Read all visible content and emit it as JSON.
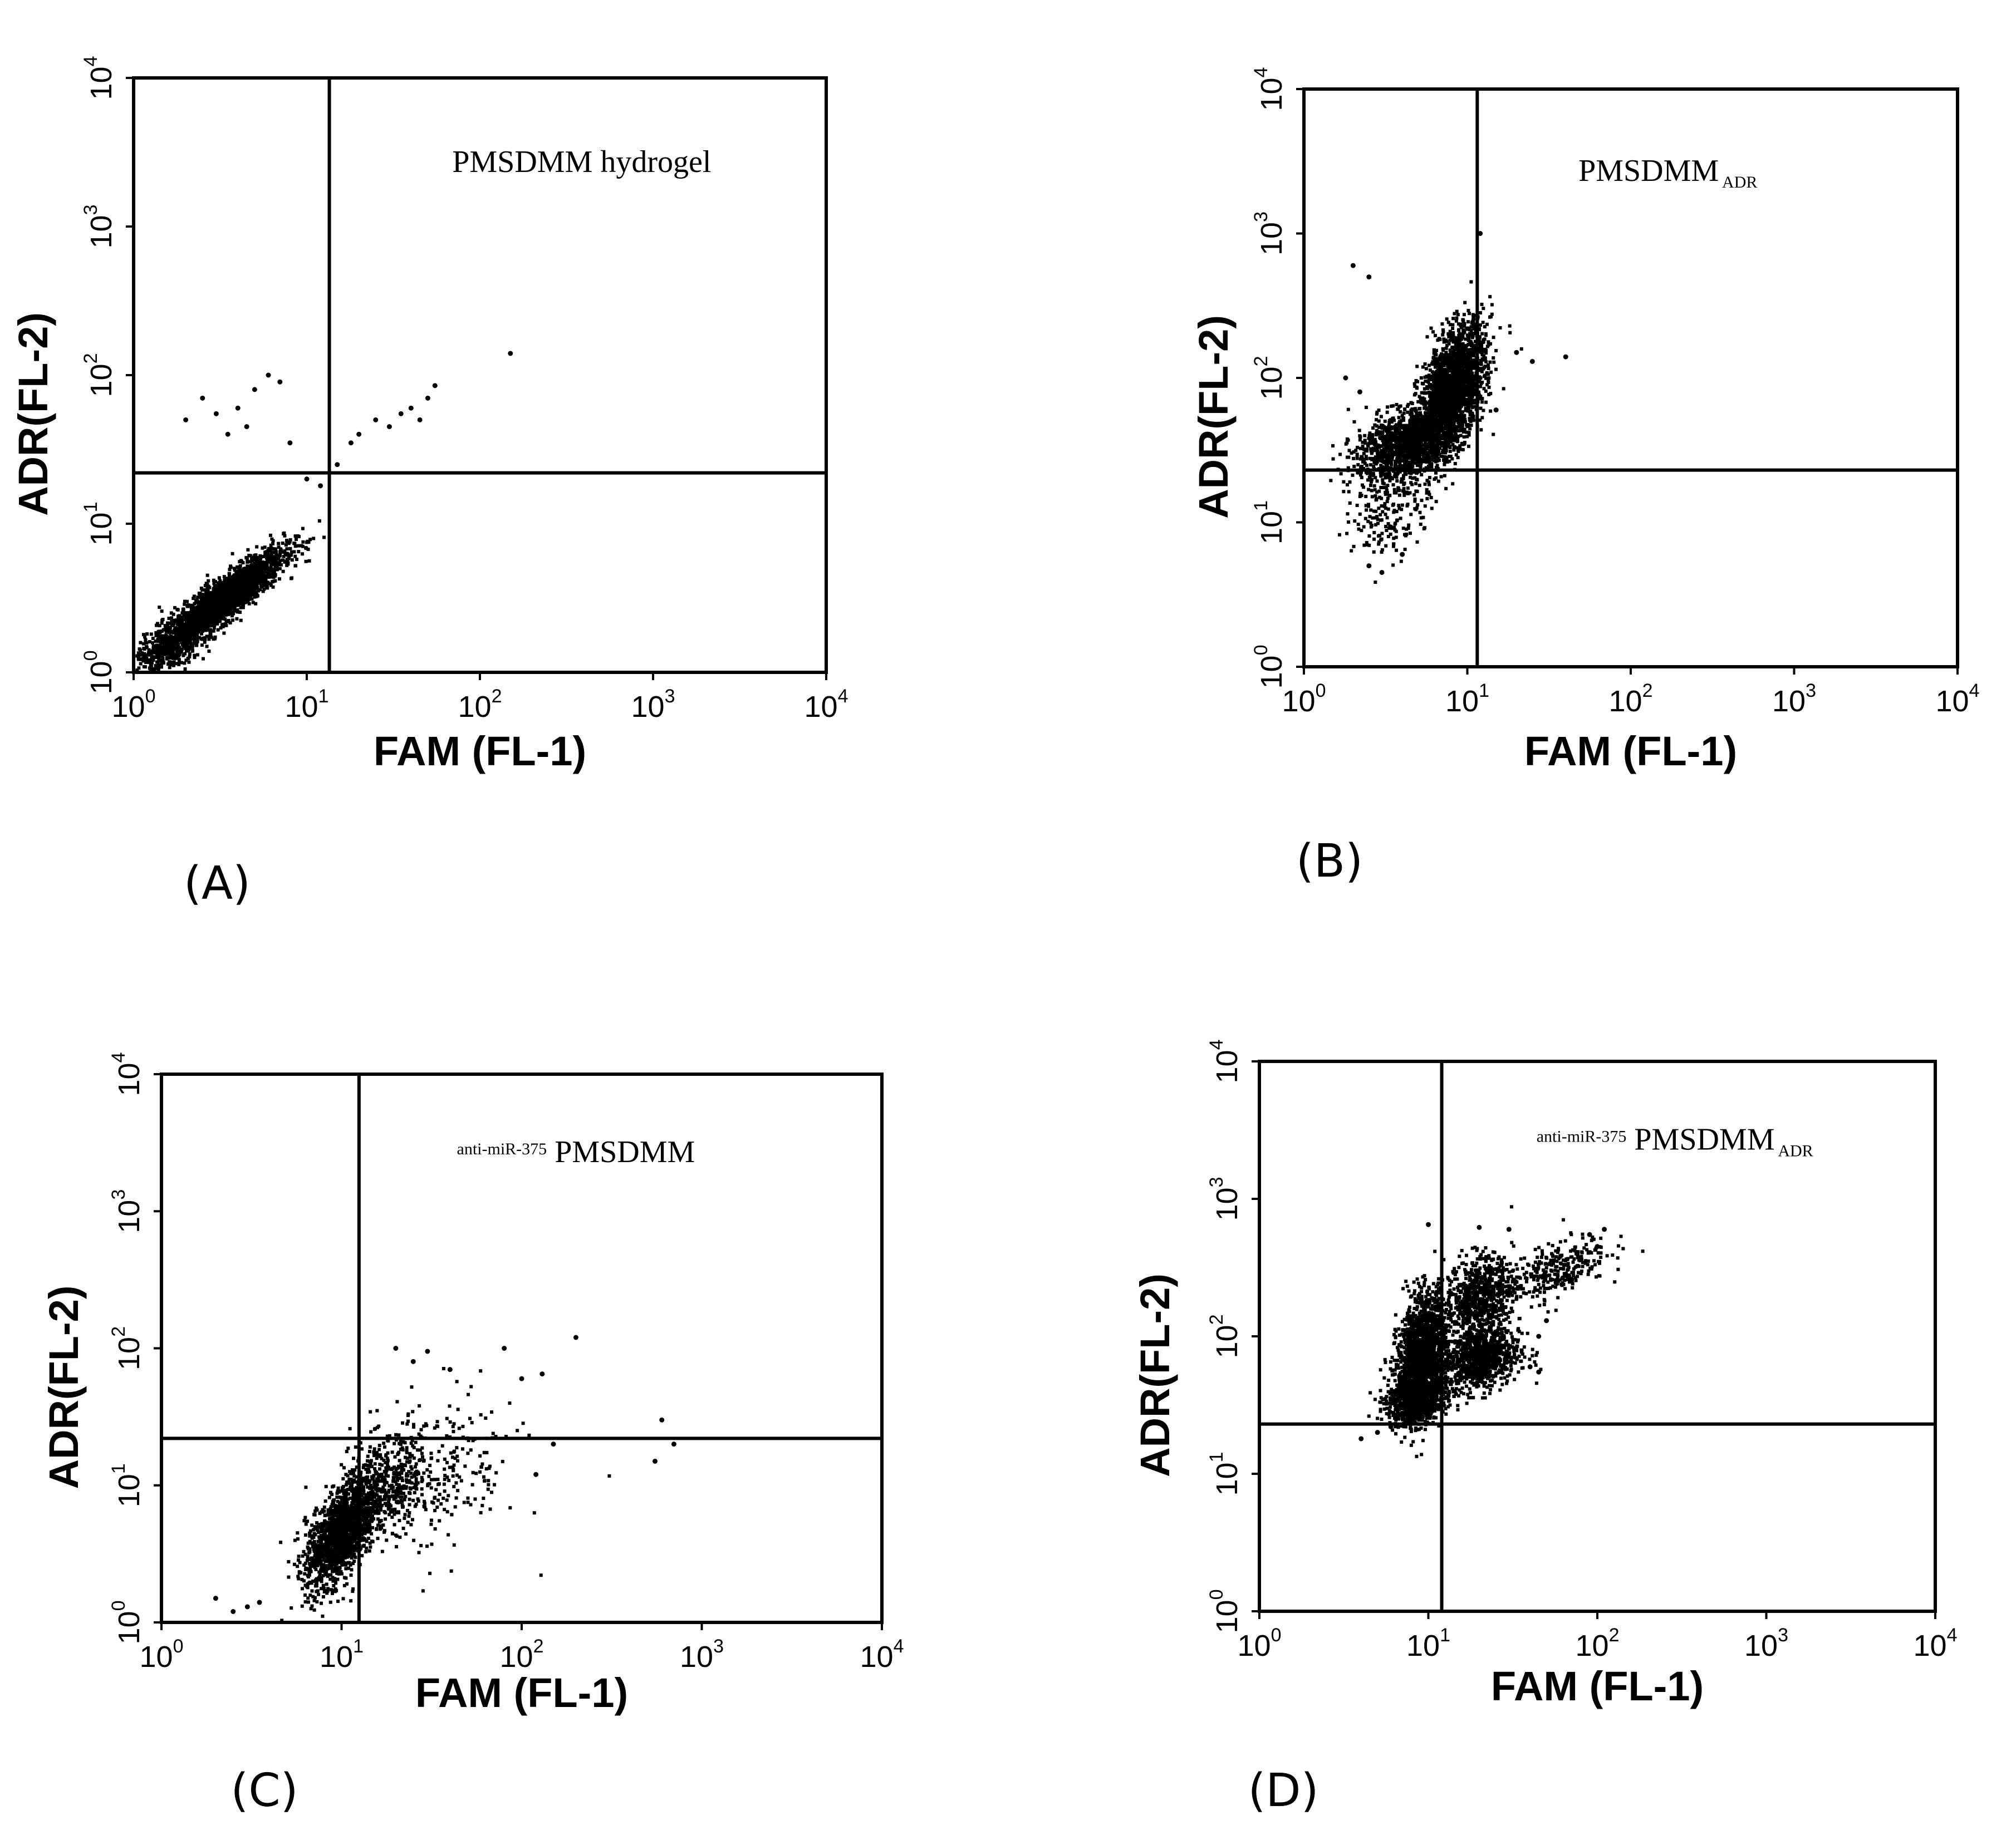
{
  "chart_data": [
    {
      "type": "scatter",
      "panel_label": "(A)",
      "annotation_prefix": "",
      "annotation_main": "PMSDMM  hydrogel",
      "annotation_sub": "",
      "xlabel": "FAM (FL-1)",
      "ylabel": "ADR(FL-2)",
      "x_scale": "log",
      "y_scale": "log",
      "xlim": [
        1,
        10000
      ],
      "ylim": [
        1,
        10000
      ],
      "tick_base": "10",
      "tick_exponents": [
        "0",
        "1",
        "2",
        "3",
        "4"
      ],
      "quadrant_gate": {
        "x": 13.5,
        "y": 22
      },
      "clusters": [
        {
          "center": [
            3.2,
            3.0
          ],
          "sigma_log10": [
            0.18,
            0.17
          ],
          "correlation": 0.9,
          "n": 2600
        },
        {
          "center": [
            1.6,
            1.4
          ],
          "sigma_log10": [
            0.1,
            0.1
          ],
          "correlation": 0.5,
          "n": 300
        }
      ],
      "sparse_points": [
        [
          2,
          50
        ],
        [
          2.5,
          70
        ],
        [
          3,
          55
        ],
        [
          4,
          60
        ],
        [
          5,
          80
        ],
        [
          6,
          100
        ],
        [
          7,
          90
        ],
        [
          3.5,
          40
        ],
        [
          4.5,
          45
        ],
        [
          8,
          35
        ],
        [
          10,
          20
        ],
        [
          12,
          18
        ],
        [
          15,
          25
        ],
        [
          18,
          35
        ],
        [
          20,
          40
        ],
        [
          25,
          50
        ],
        [
          30,
          45
        ],
        [
          35,
          55
        ],
        [
          40,
          60
        ],
        [
          45,
          50
        ],
        [
          50,
          70
        ],
        [
          55,
          85
        ],
        [
          150,
          140
        ]
      ]
    },
    {
      "type": "scatter",
      "panel_label": "(B)",
      "annotation_prefix": "",
      "annotation_main": "PMSDMM",
      "annotation_sub": "ADR",
      "xlabel": "FAM (FL-1)",
      "ylabel": "ADR(FL-2)",
      "x_scale": "log",
      "y_scale": "log",
      "xlim": [
        1,
        10000
      ],
      "ylim": [
        1,
        10000
      ],
      "tick_base": "10",
      "tick_exponents": [
        "0",
        "1",
        "2",
        "3",
        "4"
      ],
      "quadrant_gate": {
        "x": 11.5,
        "y": 23
      },
      "clusters": [
        {
          "center": [
            8.0,
            80
          ],
          "sigma_log10": [
            0.1,
            0.22
          ],
          "correlation": 0.5,
          "n": 2200
        },
        {
          "center": [
            4.0,
            35
          ],
          "sigma_log10": [
            0.14,
            0.12
          ],
          "correlation": 0.4,
          "n": 1100
        },
        {
          "center": [
            3.5,
            15
          ],
          "sigma_log10": [
            0.12,
            0.22
          ],
          "correlation": 0.2,
          "n": 260
        }
      ],
      "sparse_points": [
        [
          2,
          600
        ],
        [
          2.5,
          500
        ],
        [
          1.8,
          100
        ],
        [
          2.2,
          80
        ],
        [
          20,
          150
        ],
        [
          25,
          130
        ],
        [
          40,
          140
        ],
        [
          15,
          60
        ],
        [
          12,
          1000
        ],
        [
          2.5,
          5
        ],
        [
          3,
          4.5
        ],
        [
          4,
          6
        ]
      ]
    },
    {
      "type": "scatter",
      "panel_label": "(C)",
      "annotation_prefix": "anti-miR-375",
      "annotation_main": "PMSDMM",
      "annotation_sub": "",
      "xlabel": "FAM (FL-1)",
      "ylabel": "ADR(FL-2)",
      "x_scale": "log",
      "y_scale": "log",
      "xlim": [
        1,
        10000
      ],
      "ylim": [
        1,
        10000
      ],
      "tick_base": "10",
      "tick_exponents": [
        "0",
        "1",
        "2",
        "3",
        "4"
      ],
      "quadrant_gate": {
        "x": 12.5,
        "y": 22
      },
      "clusters": [
        {
          "center": [
            10.0,
            4.5
          ],
          "sigma_log10": [
            0.1,
            0.2
          ],
          "correlation": 0.6,
          "n": 1500
        },
        {
          "center": [
            18,
            10
          ],
          "sigma_log10": [
            0.14,
            0.18
          ],
          "correlation": 0.3,
          "n": 450
        },
        {
          "center": [
            35,
            12
          ],
          "sigma_log10": [
            0.22,
            0.3
          ],
          "correlation": 0.2,
          "n": 220
        }
      ],
      "sparse_points": [
        [
          2,
          1.5
        ],
        [
          2.5,
          1.2
        ],
        [
          3,
          1.3
        ],
        [
          3.5,
          1.4
        ],
        [
          20,
          100
        ],
        [
          25,
          80
        ],
        [
          30,
          95
        ],
        [
          40,
          70
        ],
        [
          80,
          100
        ],
        [
          100,
          60
        ],
        [
          130,
          65
        ],
        [
          200,
          120
        ],
        [
          550,
          15
        ],
        [
          600,
          30
        ],
        [
          700,
          20
        ],
        [
          120,
          12
        ],
        [
          150,
          20
        ]
      ]
    },
    {
      "type": "scatter",
      "panel_label": "(D)",
      "annotation_prefix": "anti-miR-375",
      "annotation_main": "PMSDMM",
      "annotation_sub": "ADR",
      "xlabel": "FAM (FL-1)",
      "ylabel": "ADR(FL-2)",
      "x_scale": "log",
      "y_scale": "log",
      "xlim": [
        1,
        10000
      ],
      "ylim": [
        1,
        10000
      ],
      "tick_base": "10",
      "tick_exponents": [
        "0",
        "1",
        "2",
        "3",
        "4"
      ],
      "quadrant_gate": {
        "x": 12,
        "y": 23
      },
      "clusters": [
        {
          "center": [
            9.0,
            70
          ],
          "sigma_log10": [
            0.07,
            0.22
          ],
          "correlation": 0.3,
          "n": 1700
        },
        {
          "center": [
            8.5,
            35
          ],
          "sigma_log10": [
            0.09,
            0.08
          ],
          "correlation": 0.2,
          "n": 700
        },
        {
          "center": [
            20,
            200
          ],
          "sigma_log10": [
            0.1,
            0.14
          ],
          "correlation": 0.2,
          "n": 700
        },
        {
          "center": [
            20,
            70
          ],
          "sigma_log10": [
            0.12,
            0.12
          ],
          "correlation": 0.2,
          "n": 900
        },
        {
          "center": [
            55,
            300
          ],
          "sigma_log10": [
            0.16,
            0.12
          ],
          "correlation": 0.6,
          "n": 320
        }
      ],
      "sparse_points": [
        [
          4,
          18
        ],
        [
          5,
          20
        ],
        [
          6,
          22
        ],
        [
          40,
          60
        ],
        [
          45,
          100
        ],
        [
          50,
          130
        ],
        [
          100,
          450
        ],
        [
          110,
          600
        ],
        [
          90,
          550
        ],
        [
          30,
          600
        ],
        [
          20,
          620
        ],
        [
          10,
          650
        ],
        [
          45,
          55
        ]
      ]
    }
  ]
}
